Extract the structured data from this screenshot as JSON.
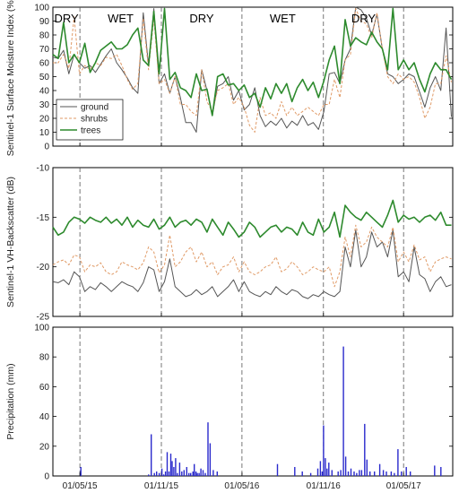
{
  "chart_data": [
    {
      "type": "line",
      "ylabel": "Sentinel-1 Surface Moisture Index (%)",
      "ylim": [
        0,
        100
      ],
      "yticks": [
        0,
        10,
        20,
        30,
        40,
        50,
        60,
        70,
        80,
        90,
        100
      ],
      "grid": false,
      "legend": "top-left, inside axes (lower half)",
      "season_labels": [
        "DRY",
        "WET",
        "DRY",
        "WET",
        "DRY"
      ],
      "x": [
        "2015-03-01",
        "2015-03-13",
        "2015-03-25",
        "2015-04-06",
        "2015-04-18",
        "2015-04-30",
        "2015-05-12",
        "2015-05-24",
        "2015-06-05",
        "2015-06-17",
        "2015-06-29",
        "2015-07-11",
        "2015-07-23",
        "2015-08-04",
        "2015-08-16",
        "2015-08-28",
        "2015-09-09",
        "2015-09-21",
        "2015-10-03",
        "2015-10-15",
        "2015-10-27",
        "2015-11-08",
        "2015-11-20",
        "2015-12-02",
        "2015-12-14",
        "2015-12-26",
        "2016-01-07",
        "2016-01-19",
        "2016-01-31",
        "2016-02-12",
        "2016-02-24",
        "2016-03-07",
        "2016-03-19",
        "2016-03-31",
        "2016-04-12",
        "2016-04-24",
        "2016-05-06",
        "2016-05-18",
        "2016-05-30",
        "2016-06-11",
        "2016-06-23",
        "2016-07-05",
        "2016-07-17",
        "2016-07-29",
        "2016-08-10",
        "2016-08-22",
        "2016-09-03",
        "2016-09-15",
        "2016-09-27",
        "2016-10-09",
        "2016-10-21",
        "2016-11-02",
        "2016-11-14",
        "2016-11-26",
        "2016-12-08",
        "2016-12-20",
        "2017-01-01",
        "2017-01-13",
        "2017-01-25",
        "2017-02-06",
        "2017-02-18",
        "2017-03-02",
        "2017-03-14",
        "2017-03-26",
        "2017-04-07",
        "2017-04-19",
        "2017-05-01",
        "2017-05-13",
        "2017-05-25",
        "2017-06-06",
        "2017-06-18",
        "2017-06-30",
        "2017-07-12",
        "2017-07-24",
        "2017-08-05",
        "2017-08-17"
      ],
      "series": [
        {
          "name": "ground",
          "color": "#555555",
          "values": [
            64,
            63,
            69,
            52,
            66,
            60,
            56,
            58,
            53,
            59,
            65,
            70,
            60,
            55,
            49,
            42,
            38,
            96,
            58,
            99,
            45,
            52,
            38,
            50,
            35,
            17,
            17,
            10,
            55,
            40,
            22,
            43,
            45,
            50,
            33,
            40,
            26,
            30,
            42,
            22,
            14,
            18,
            15,
            20,
            13,
            18,
            15,
            22,
            15,
            17,
            12,
            25,
            52,
            53,
            45,
            62,
            70,
            100,
            98,
            92,
            80,
            95,
            70,
            52,
            50,
            45,
            48,
            52,
            50,
            39,
            28,
            42,
            50,
            40,
            85,
            21
          ]
        },
        {
          "name": "shrubs",
          "color": "#e09a66",
          "values": [
            60,
            60,
            66,
            56,
            93,
            52,
            58,
            55,
            60,
            58,
            64,
            63,
            66,
            58,
            48,
            41,
            45,
            92,
            55,
            92,
            45,
            48,
            38,
            50,
            30,
            30,
            25,
            22,
            55,
            32,
            25,
            40,
            42,
            45,
            30,
            35,
            28,
            15,
            10,
            35,
            22,
            24,
            20,
            32,
            22,
            28,
            22,
            25,
            28,
            25,
            22,
            30,
            30,
            48,
            35,
            62,
            66,
            99,
            90,
            88,
            78,
            96,
            70,
            50,
            45,
            52,
            48,
            50,
            46,
            35,
            20,
            28,
            45,
            45,
            65,
            46
          ]
        },
        {
          "name": "trees",
          "color": "#2d8a2d",
          "values": [
            66,
            63,
            89,
            60,
            66,
            60,
            74,
            53,
            60,
            69,
            72,
            75,
            70,
            70,
            73,
            80,
            85,
            62,
            58,
            97,
            52,
            99,
            48,
            53,
            42,
            40,
            35,
            52,
            40,
            41,
            22,
            50,
            52,
            44,
            45,
            40,
            44,
            35,
            38,
            28,
            42,
            34,
            45,
            38,
            45,
            32,
            42,
            48,
            40,
            46,
            35,
            47,
            62,
            72,
            45,
            91,
            72,
            78,
            75,
            73,
            82,
            75,
            70,
            55,
            99,
            55,
            62,
            55,
            60,
            48,
            39,
            52,
            60,
            55,
            55,
            48
          ]
        }
      ]
    },
    {
      "type": "line",
      "ylabel": "Sentinel-1 VH-Backscatter (dB)",
      "ylim": [
        -25,
        -10
      ],
      "yticks": [
        -25,
        -20,
        -15,
        -10
      ],
      "grid": false,
      "series": [
        {
          "name": "ground",
          "values": [
            -21.5,
            -21.6,
            -21.3,
            -21.8,
            -20.5,
            -21.0,
            -22.5,
            -22.0,
            -22.3,
            -21.6,
            -22.0,
            -22.5,
            -22.0,
            -21.5,
            -21.8,
            -22.0,
            -22.5,
            -21.6,
            -20.0,
            -20.3,
            -22.5,
            -21.5,
            -19.2,
            -22.0,
            -22.5,
            -23.0,
            -22.8,
            -22.3,
            -22.8,
            -22.5,
            -22.0,
            -23.0,
            -22.5,
            -22.0,
            -21.3,
            -22.5,
            -21.5,
            -22.5,
            -22.8,
            -23.0,
            -22.5,
            -22.8,
            -22.0,
            -22.5,
            -22.8,
            -22.3,
            -22.5,
            -23.0,
            -23.2,
            -22.8,
            -23.0,
            -22.5,
            -22.8,
            -23.0,
            -22.5,
            -18.0,
            -20.0,
            -16.3,
            -20.0,
            -19.0,
            -16.5,
            -18.0,
            -17.5,
            -19.0,
            -16.3,
            -21.0,
            -20.5,
            -21.5,
            -18.0,
            -20.8,
            -21.2,
            -22.5,
            -21.5,
            -21.0,
            -22.0,
            -21.8
          ]
        },
        {
          "name": "shrubs",
          "values": [
            -19.8,
            -19.5,
            -19.3,
            -19.8,
            -18.8,
            -19.0,
            -20.5,
            -19.8,
            -20.0,
            -19.6,
            -20.5,
            -20.8,
            -20.5,
            -19.5,
            -19.8,
            -20.0,
            -20.3,
            -19.6,
            -18.0,
            -18.5,
            -20.6,
            -19.8,
            -16.8,
            -20.0,
            -19.5,
            -18.5,
            -18.0,
            -19.5,
            -18.5,
            -20.0,
            -19.5,
            -20.8,
            -20.0,
            -19.8,
            -19.0,
            -20.5,
            -19.5,
            -20.5,
            -20.8,
            -20.5,
            -20.0,
            -19.8,
            -19.0,
            -20.5,
            -20.2,
            -19.5,
            -20.0,
            -20.8,
            -20.5,
            -20.0,
            -20.3,
            -20.5,
            -20.0,
            -22.0,
            -20.5,
            -17.0,
            -19.0,
            -15.8,
            -18.0,
            -17.5,
            -16.0,
            -17.0,
            -17.5,
            -18.0,
            -16.0,
            -19.5,
            -18.5,
            -19.5,
            -17.8,
            -19.3,
            -19.0,
            -20.5,
            -19.5,
            -19.2,
            -19.0,
            -19.2
          ]
        },
        {
          "name": "trees",
          "values": [
            -16.0,
            -16.8,
            -16.5,
            -15.5,
            -15.0,
            -15.2,
            -15.6,
            -15.0,
            -15.3,
            -15.5,
            -15.0,
            -15.6,
            -15.2,
            -15.8,
            -15.0,
            -16.0,
            -15.3,
            -15.8,
            -16.0,
            -15.2,
            -16.2,
            -15.8,
            -15.0,
            -16.0,
            -15.5,
            -15.3,
            -15.8,
            -15.2,
            -15.5,
            -16.5,
            -15.2,
            -16.0,
            -16.8,
            -15.5,
            -16.2,
            -17.0,
            -16.5,
            -15.5,
            -16.0,
            -17.0,
            -16.5,
            -16.0,
            -15.8,
            -16.5,
            -16.0,
            -16.2,
            -16.8,
            -15.5,
            -16.5,
            -16.8,
            -15.2,
            -16.5,
            -16.0,
            -14.5,
            -17.0,
            -13.8,
            -14.5,
            -15.0,
            -15.3,
            -14.5,
            -15.0,
            -15.5,
            -16.0,
            -14.8,
            -13.3,
            -15.5,
            -14.8,
            -15.2,
            -15.0,
            -15.5,
            -15.0,
            -14.8,
            -15.3,
            -14.5,
            -15.8,
            -15.8
          ]
        }
      ]
    },
    {
      "type": "bar",
      "ylabel": "Precipitation (mm)",
      "ylim": [
        0,
        100
      ],
      "yticks": [
        0,
        20,
        40,
        60,
        80,
        100
      ],
      "bar_color": "#2a2acc",
      "xticks": [
        "01/05/15",
        "01/11/15",
        "01/05/16",
        "01/11/16",
        "01/05/17"
      ],
      "x": [
        "2015-05-03",
        "2015-10-03",
        "2015-10-09",
        "2015-10-16",
        "2015-10-21",
        "2015-10-27",
        "2015-11-02",
        "2015-11-06",
        "2015-11-10",
        "2015-11-14",
        "2015-11-18",
        "2015-11-22",
        "2015-11-25",
        "2015-11-29",
        "2015-12-03",
        "2015-12-07",
        "2015-12-12",
        "2015-12-17",
        "2015-12-22",
        "2015-12-28",
        "2016-01-02",
        "2016-01-06",
        "2016-01-11",
        "2016-01-14",
        "2016-01-18",
        "2016-01-21",
        "2016-01-25",
        "2016-01-29",
        "2016-02-03",
        "2016-02-08",
        "2016-02-14",
        "2016-02-19",
        "2016-02-26",
        "2016-03-06",
        "2016-07-20",
        "2016-08-28",
        "2016-09-14",
        "2016-10-03",
        "2016-10-19",
        "2016-10-25",
        "2016-10-29",
        "2016-11-01",
        "2016-11-05",
        "2016-11-09",
        "2016-11-13",
        "2016-11-20",
        "2016-12-04",
        "2016-12-10",
        "2016-12-16",
        "2016-12-21",
        "2016-12-27",
        "2017-01-02",
        "2017-01-09",
        "2017-01-15",
        "2017-01-21",
        "2017-01-26",
        "2017-02-02",
        "2017-02-07",
        "2017-02-14",
        "2017-02-24",
        "2017-03-08",
        "2017-03-16",
        "2017-03-23",
        "2017-04-03",
        "2017-04-10",
        "2017-04-18",
        "2017-04-26",
        "2017-05-07",
        "2017-05-16",
        "2017-07-10",
        "2017-07-24"
      ],
      "values": [
        6,
        1,
        28,
        2,
        3,
        2,
        5,
        1,
        3,
        16,
        3,
        15,
        10,
        6,
        12,
        2,
        9,
        3,
        4,
        6,
        2,
        2,
        3,
        8,
        3,
        2,
        2,
        5,
        4,
        2,
        36,
        22,
        4,
        3,
        8,
        6,
        3,
        2,
        5,
        10,
        3,
        34,
        12,
        5,
        9,
        4,
        3,
        4,
        87,
        13,
        3,
        5,
        3,
        2,
        4,
        4,
        35,
        11,
        3,
        3,
        8,
        4,
        3,
        3,
        2,
        18,
        3,
        6,
        3,
        7,
        6
      ]
    }
  ]
}
